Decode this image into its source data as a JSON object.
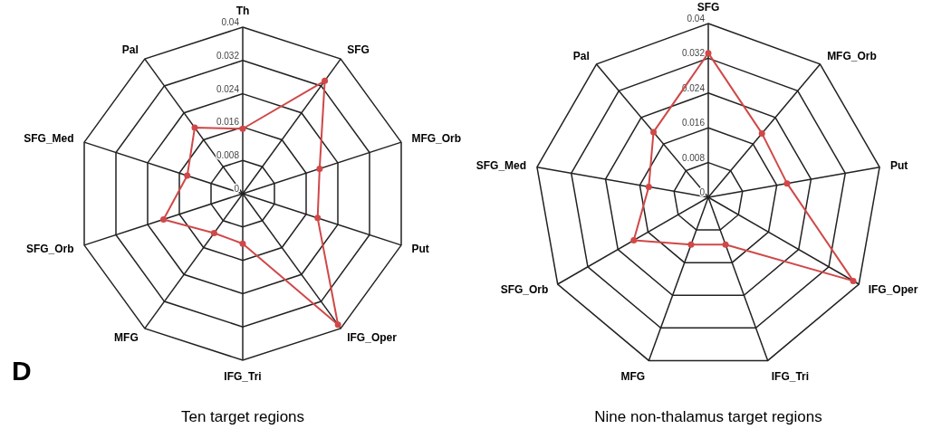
{
  "chart_data": [
    {
      "type": "radar",
      "title": "Ten target regions",
      "annotations": [
        "D"
      ],
      "categories": [
        "Th",
        "SFG",
        "MFG_Orb",
        "Put",
        "IFG_Oper",
        "IFG_Tri",
        "MFG",
        "SFG_Orb",
        "SFG_Med",
        "Pal"
      ],
      "ylim": [
        0,
        0.04
      ],
      "yticks": [
        0,
        0.008,
        0.016,
        0.024,
        0.032,
        0.04
      ],
      "grid": true,
      "marker": "circle",
      "line_style": "solid",
      "series": [
        {
          "color": "#d04848",
          "values": [
            0.0156,
            0.0335,
            0.0194,
            0.0189,
            0.0389,
            0.012,
            0.0117,
            0.02,
            0.014,
            0.0196
          ]
        }
      ]
    },
    {
      "type": "radar",
      "title": "Nine non-thalamus target regions",
      "categories": [
        "SFG",
        "MFG_Orb",
        "Put",
        "IFG_Oper",
        "IFG_Tri",
        "MFG",
        "SFG_Orb",
        "SFG_Med",
        "Pal"
      ],
      "ylim": [
        0,
        0.04
      ],
      "yticks": [
        0,
        0.008,
        0.016,
        0.024,
        0.032,
        0.04
      ],
      "grid": true,
      "marker": "circle",
      "line_style": "solid",
      "series": [
        {
          "color": "#d04848",
          "values": [
            0.0332,
            0.0192,
            0.0184,
            0.0385,
            0.0116,
            0.0116,
            0.0198,
            0.0139,
            0.0196
          ]
        }
      ]
    }
  ]
}
